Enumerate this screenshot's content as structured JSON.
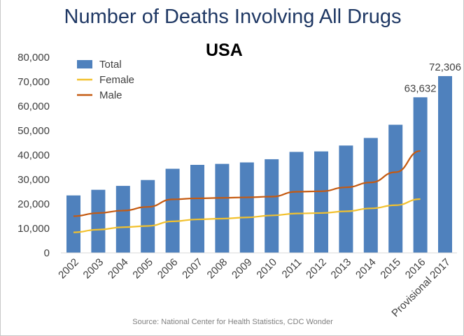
{
  "chart_data": {
    "type": "bar",
    "title": "Number of Deaths Involving All Drugs",
    "subtitle": "USA",
    "source": "Source: National Center for Health Statistics, CDC Wonder",
    "categories": [
      "2002",
      "2003",
      "2004",
      "2005",
      "2006",
      "2007",
      "2008",
      "2009",
      "2010",
      "2011",
      "2012",
      "2013",
      "2014",
      "2015",
      "2016",
      "Provisional 2017"
    ],
    "series": [
      {
        "name": "Total",
        "type": "bar",
        "color": "#4f81bd",
        "values": [
          23500,
          25800,
          27400,
          29800,
          34400,
          36000,
          36400,
          37000,
          38300,
          41300,
          41500,
          43900,
          47000,
          52400,
          63632,
          72306
        ]
      },
      {
        "name": "Female",
        "type": "line",
        "color": "#f2c12e",
        "values": [
          8400,
          9500,
          10500,
          11000,
          12900,
          13700,
          14000,
          14500,
          15300,
          16100,
          16300,
          17000,
          18200,
          19500,
          22000,
          null
        ]
      },
      {
        "name": "Male",
        "type": "line",
        "color": "#c55a11",
        "values": [
          15000,
          16300,
          17300,
          18800,
          21900,
          22300,
          22500,
          22700,
          23000,
          25000,
          25200,
          26800,
          28800,
          33000,
          41700,
          null
        ]
      }
    ],
    "data_labels": [
      {
        "category": "2016",
        "text": "63,632"
      },
      {
        "category": "Provisional 2017",
        "text": "72,306"
      }
    ],
    "y_ticks": [
      "0",
      "10,000",
      "20,000",
      "30,000",
      "40,000",
      "50,000",
      "60,000",
      "70,000",
      "80,000"
    ],
    "ylim": [
      0,
      80000
    ],
    "grid": false,
    "legend_position": "top-left"
  }
}
